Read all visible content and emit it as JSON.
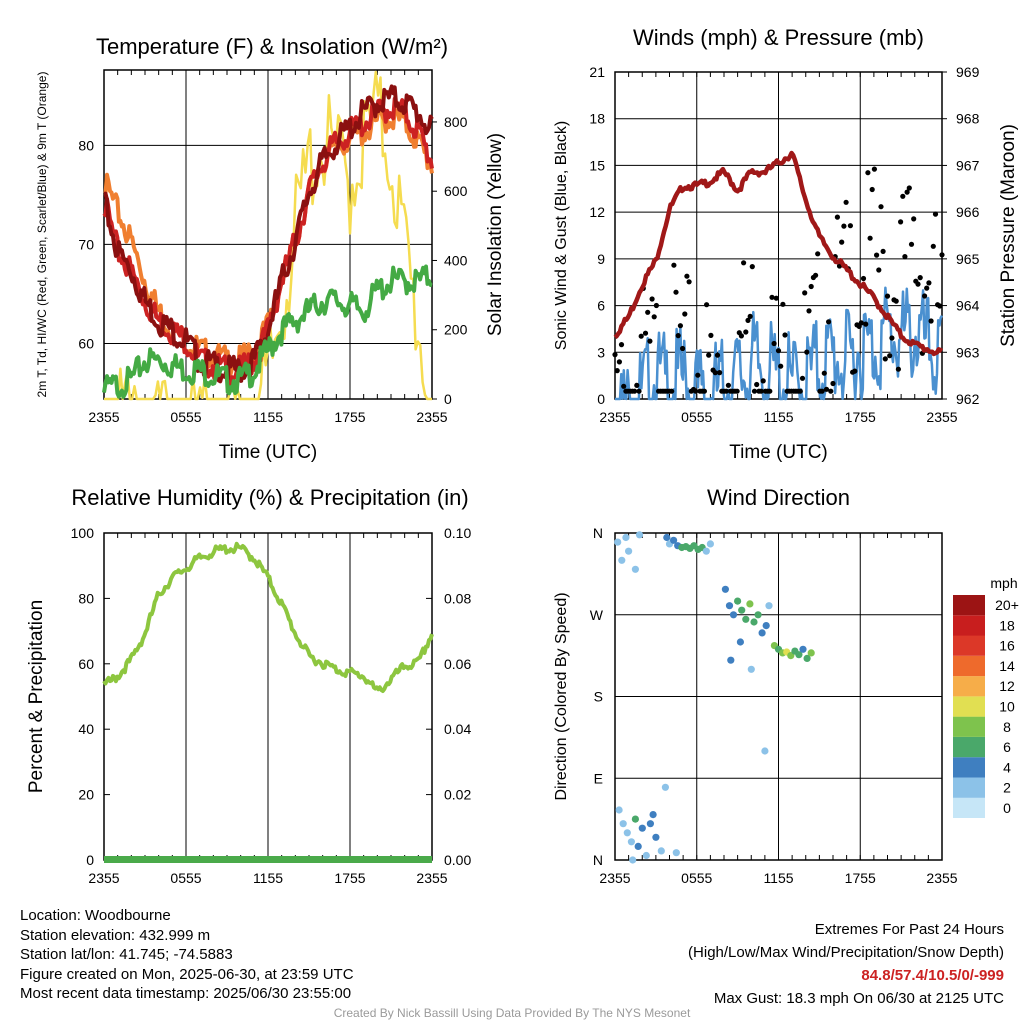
{
  "chart_data": [
    {
      "id": "temperature",
      "type": "line",
      "title": "Temperature (F) & Insolation (W/m²)",
      "xlabel": "Time (UTC)",
      "ylabel": "2m T, Td, HI/WC (Red, Green, Scarlet/Blue) & 9m T (Orange)",
      "ylabel2": "Solar Insolation (Yellow)",
      "x_ticks": [
        "2355",
        "0555",
        "1155",
        "1755",
        "2355"
      ],
      "ylim": [
        54.4,
        87.6
      ],
      "y_ticks": [
        60,
        70,
        80
      ],
      "ylim2": [
        0,
        950
      ],
      "y2_ticks": [
        0,
        200,
        400,
        600,
        800
      ],
      "x_hours": [
        0,
        1,
        2,
        3,
        4,
        5,
        6,
        7,
        8,
        9,
        10,
        11,
        12,
        13,
        14,
        15,
        16,
        17,
        18,
        19,
        20,
        21,
        22,
        23,
        24
      ],
      "series": [
        {
          "name": "2m T",
          "color": "#cc2222",
          "values": [
            75,
            70,
            68,
            65,
            63,
            62,
            61,
            59,
            58.5,
            58,
            58,
            59,
            62,
            67,
            71,
            76,
            79,
            81,
            82,
            83,
            84,
            84.5,
            84,
            82,
            79
          ]
        },
        {
          "name": "9m T",
          "color": "#f07f30",
          "values": [
            77,
            74,
            71,
            67,
            64,
            62,
            61,
            60,
            59.5,
            59,
            59,
            60,
            62.5,
            67,
            71,
            76,
            79,
            80.5,
            81.5,
            82,
            83,
            83.5,
            83,
            81,
            78.5
          ]
        },
        {
          "name": "HI/WC",
          "color": "#8b1010",
          "values": [
            75,
            70,
            68,
            65,
            63,
            62,
            61,
            59,
            58.5,
            58,
            58,
            59,
            62,
            67,
            71,
            76,
            79,
            81,
            82.5,
            84,
            85,
            85.5,
            85,
            84,
            82
          ]
        },
        {
          "name": "Td",
          "color": "#44aa44",
          "values": [
            56,
            56.5,
            57,
            59,
            59,
            58.5,
            58,
            58,
            57.5,
            57,
            57,
            58,
            60,
            62,
            63,
            64,
            65,
            65,
            64.5,
            64,
            66,
            67,
            67,
            67,
            67.5
          ]
        },
        {
          "name": "Solar Insolation",
          "color": "#f5dc50",
          "axis": "right",
          "values": [
            30,
            10,
            0,
            0,
            0,
            0,
            0,
            0,
            0,
            0,
            0,
            20,
            120,
            350,
            560,
            760,
            820,
            780,
            700,
            820,
            900,
            780,
            520,
            280,
            30
          ]
        }
      ]
    },
    {
      "id": "winds",
      "type": "line",
      "title": "Winds (mph) & Pressure (mb)",
      "xlabel": "Time (UTC)",
      "ylabel": "Sonic Wind & Gust (Blue, Black)",
      "ylabel2": "Station Pressure (Maroon)",
      "x_ticks": [
        "2355",
        "0555",
        "1155",
        "1755",
        "2355"
      ],
      "ylim": [
        0,
        21
      ],
      "y_ticks": [
        0,
        3,
        6,
        9,
        12,
        15,
        18,
        21
      ],
      "ylim2": [
        962,
        969
      ],
      "y2_ticks": [
        962,
        963,
        964,
        965,
        966,
        967,
        968,
        969
      ],
      "x_hours": [
        0,
        1,
        2,
        3,
        4,
        5,
        6,
        7,
        8,
        9,
        10,
        11,
        12,
        13,
        14,
        15,
        16,
        17,
        18,
        19,
        20,
        21,
        22,
        23,
        24
      ],
      "series": [
        {
          "name": "Sonic Wind",
          "color": "#4a90d0",
          "values": [
            1.5,
            1,
            2,
            3,
            2.5,
            3,
            2,
            2,
            2.5,
            3,
            4,
            3.5,
            3,
            2.5,
            3,
            4,
            4.5,
            4,
            5,
            5,
            6,
            5.5,
            6,
            5,
            4
          ]
        },
        {
          "name": "Pressure",
          "color": "#a01818",
          "axis": "right",
          "values": [
            963.4,
            963.8,
            964.5,
            965,
            966.1,
            966.6,
            966.6,
            966.7,
            966.9,
            966.5,
            966.9,
            966.9,
            967.1,
            967.3,
            966.3,
            965.5,
            965.1,
            964.8,
            964.5,
            964.2,
            963.8,
            963.4,
            963.2,
            963.1,
            963
          ]
        },
        {
          "name": "Gust",
          "color": "#000000",
          "type": "scatter",
          "values": [
            2.5,
            3,
            4.5,
            5,
            6,
            5,
            5,
            4,
            4,
            6,
            8,
            7,
            5,
            4,
            5,
            7,
            9,
            10,
            11,
            12,
            10,
            11,
            12,
            11,
            8
          ]
        }
      ]
    },
    {
      "id": "humidity",
      "type": "line",
      "title": "Relative Humidity (%) & Precipitation (in)",
      "ylabel": "Percent & Precipitation",
      "x_ticks": [
        "2355",
        "0555",
        "1155",
        "1755",
        "2355"
      ],
      "ylim": [
        0,
        100
      ],
      "y_ticks": [
        0,
        20,
        40,
        60,
        80,
        100
      ],
      "ylim2": [
        0,
        0.1
      ],
      "y2_ticks": [
        "0.00",
        "0.02",
        "0.04",
        "0.06",
        "0.08",
        "0.10"
      ],
      "x_hours": [
        0,
        1,
        2,
        3,
        4,
        5,
        6,
        7,
        8,
        9,
        10,
        11,
        12,
        13,
        14,
        15,
        16,
        17,
        18,
        19,
        20,
        21,
        22,
        23,
        24
      ],
      "series": [
        {
          "name": "Relative Humidity",
          "color": "#8dc63f",
          "values": [
            54,
            57,
            62,
            70,
            82,
            87,
            90,
            93,
            95,
            96,
            96,
            93,
            87,
            79,
            70,
            63,
            61,
            59,
            58,
            57,
            52,
            56,
            60,
            61,
            70
          ]
        },
        {
          "name": "Precipitation",
          "color": "#4aaa4a",
          "axis": "right",
          "values": [
            0,
            0,
            0,
            0,
            0,
            0,
            0,
            0,
            0,
            0,
            0,
            0,
            0,
            0,
            0,
            0,
            0,
            0,
            0,
            0,
            0,
            0,
            0,
            0,
            0
          ]
        }
      ]
    },
    {
      "id": "wind-direction",
      "type": "scatter",
      "title": "Wind Direction",
      "ylabel": "Direction (Colored By Speed)",
      "x_ticks": [
        "2355",
        "0555",
        "1155",
        "1755",
        "2355"
      ],
      "y_ticks": [
        "N",
        "E",
        "S",
        "W",
        "N"
      ],
      "ylim": [
        0,
        360
      ],
      "colorbar": {
        "unit": "mph",
        "labels": [
          "0",
          "2",
          "4",
          "6",
          "8",
          "10",
          "12",
          "14",
          "16",
          "18",
          "20+"
        ],
        "colors": [
          "#c6e6f7",
          "#8cc2e8",
          "#3f7fc0",
          "#4aa86a",
          "#7ec34d",
          "#e1df52",
          "#f6ad49",
          "#ee6a2c",
          "#dc3828",
          "#c81e1e",
          "#9c1414"
        ]
      },
      "points": [
        [
          0.2,
          350,
          1
        ],
        [
          0.5,
          330,
          1
        ],
        [
          0.8,
          355,
          2
        ],
        [
          1.0,
          340,
          1
        ],
        [
          1.3,
          0,
          1
        ],
        [
          1.5,
          320,
          2
        ],
        [
          1.8,
          358,
          1
        ],
        [
          0.3,
          55,
          1
        ],
        [
          0.6,
          40,
          1
        ],
        [
          0.9,
          30,
          2
        ],
        [
          1.2,
          20,
          2
        ],
        [
          1.5,
          45,
          5
        ],
        [
          1.7,
          15,
          3
        ],
        [
          2.0,
          35,
          3
        ],
        [
          2.6,
          40,
          3
        ],
        [
          2.8,
          50,
          4
        ],
        [
          3.0,
          25,
          3
        ],
        [
          2.3,
          5,
          2
        ],
        [
          3.4,
          10,
          2
        ],
        [
          3.8,
          355,
          3
        ],
        [
          4.0,
          348,
          2
        ],
        [
          4.3,
          352,
          3
        ],
        [
          4.6,
          346,
          4
        ],
        [
          4.9,
          344,
          6
        ],
        [
          5.2,
          345,
          5
        ],
        [
          5.5,
          343,
          6
        ],
        [
          5.8,
          346,
          5
        ],
        [
          6.1,
          342,
          6
        ],
        [
          6.4,
          344,
          5
        ],
        [
          6.7,
          340,
          2
        ],
        [
          7.0,
          348,
          2
        ],
        [
          8.1,
          298,
          3
        ],
        [
          8.4,
          280,
          4
        ],
        [
          8.7,
          270,
          3
        ],
        [
          9.0,
          285,
          5
        ],
        [
          9.3,
          275,
          6
        ],
        [
          9.6,
          265,
          5
        ],
        [
          9.9,
          282,
          7
        ],
        [
          10.2,
          262,
          6
        ],
        [
          10.5,
          270,
          5
        ],
        [
          10.8,
          250,
          4
        ],
        [
          11.1,
          258,
          3
        ],
        [
          11.3,
          280,
          2
        ],
        [
          11.7,
          236,
          8
        ],
        [
          12.0,
          232,
          6
        ],
        [
          12.3,
          228,
          7
        ],
        [
          12.6,
          229,
          9
        ],
        [
          12.9,
          225,
          8
        ],
        [
          13.2,
          230,
          6
        ],
        [
          13.5,
          226,
          5
        ],
        [
          13.8,
          232,
          4
        ],
        [
          14.1,
          222,
          5
        ],
        [
          14.4,
          228,
          7
        ],
        [
          8.5,
          220,
          3
        ],
        [
          9.2,
          240,
          4
        ],
        [
          10.0,
          210,
          2
        ],
        [
          11.0,
          120,
          2
        ],
        [
          3.7,
          80,
          1
        ],
        [
          4.5,
          8,
          2
        ]
      ]
    }
  ],
  "info": {
    "location": "Location: Woodbourne",
    "elevation": "Station elevation: 432.999 m",
    "latlon": "Station lat/lon: 41.745; -74.5883",
    "created": "Figure created on Mon, 2025-06-30, at 23:59 UTC",
    "recent": "Most recent data timestamp: 2025/06/30 23:55:00"
  },
  "extremes": {
    "title": "Extremes For Past 24 Hours",
    "subtitle": "(High/Low/Max Wind/Precipitation/Snow Depth)",
    "values": "84.8/57.4/10.5/0/-999",
    "gust": "Max Gust: 18.3 mph On 06/30 at 2125 UTC"
  },
  "credit": "Created By Nick Bassill Using Data Provided By The NYS Mesonet"
}
